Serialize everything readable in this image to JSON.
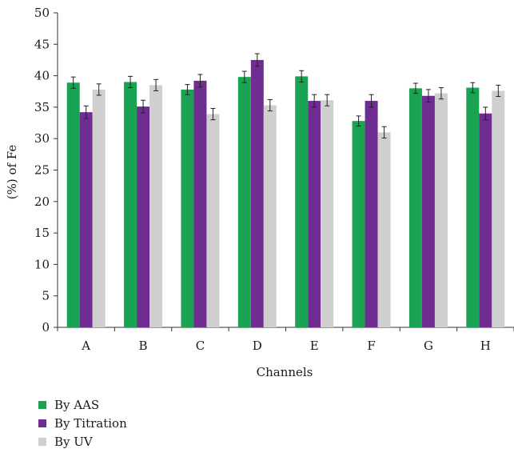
{
  "chart_data": {
    "type": "bar",
    "xlabel": "Channels",
    "ylabel": "(%) of Fe",
    "ylim": [
      0,
      50
    ],
    "yticks": [
      0,
      5,
      10,
      15,
      20,
      25,
      30,
      35,
      40,
      45,
      50
    ],
    "grid": false,
    "legend_position": "bottom-left",
    "categories": [
      "A",
      "B",
      "C",
      "D",
      "E",
      "F",
      "G",
      "H"
    ],
    "series": [
      {
        "name": "By AAS",
        "color": "#1aa352",
        "values": [
          38.9,
          39.0,
          37.8,
          39.8,
          39.9,
          32.8,
          38.0,
          38.1
        ],
        "errors": [
          0.9,
          0.9,
          0.8,
          0.9,
          0.9,
          0.8,
          0.8,
          0.8
        ]
      },
      {
        "name": "By Titration",
        "color": "#6f2d91",
        "values": [
          34.2,
          35.1,
          39.2,
          42.5,
          36.0,
          36.0,
          36.8,
          34.0
        ],
        "errors": [
          1.0,
          1.0,
          1.0,
          1.0,
          1.0,
          1.0,
          1.0,
          1.0
        ]
      },
      {
        "name": "By UV",
        "color": "#cfcfcf",
        "values": [
          37.8,
          38.5,
          33.9,
          35.3,
          36.1,
          31.0,
          37.2,
          37.6
        ],
        "errors": [
          0.9,
          0.9,
          0.9,
          0.9,
          0.9,
          0.9,
          0.9,
          0.9
        ]
      }
    ]
  }
}
